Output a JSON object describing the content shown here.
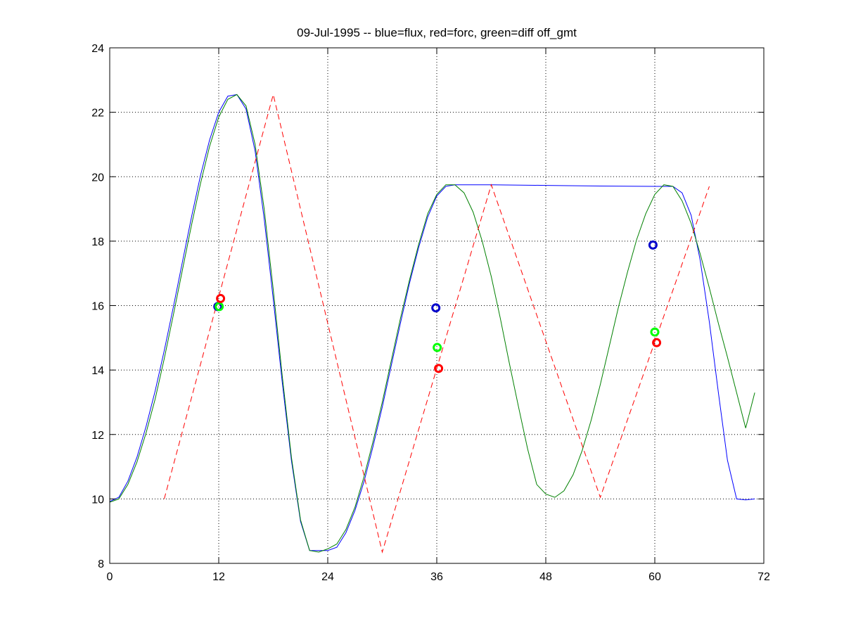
{
  "chart_data": {
    "type": "line",
    "title": "09-Jul-1995 -- blue=flux, red=forc, green=diff off_gmt",
    "xlabel": "",
    "ylabel": "",
    "xlim": [
      0,
      72
    ],
    "ylim": [
      8,
      24
    ],
    "xticks": [
      0,
      12,
      24,
      36,
      48,
      60,
      72
    ],
    "yticks": [
      8,
      10,
      12,
      14,
      16,
      18,
      20,
      22,
      24
    ],
    "xtick_labels": [
      "0",
      "12",
      "24",
      "36",
      "48",
      "60",
      "72"
    ],
    "ytick_labels": [
      "8",
      "10",
      "12",
      "14",
      "16",
      "18",
      "20",
      "22",
      "24"
    ],
    "grid": true,
    "legend": "none",
    "series": [
      {
        "color": "#0000ff",
        "style": "solid",
        "x": [
          0,
          1,
          2,
          3,
          4,
          5,
          6,
          7,
          8,
          9,
          10,
          11,
          12,
          13,
          14,
          15,
          16,
          17,
          18,
          19,
          20,
          21,
          22,
          23,
          24,
          25,
          26,
          27,
          28,
          29,
          30,
          31,
          32,
          33,
          34,
          35,
          36,
          37,
          38,
          39,
          40,
          42,
          48,
          54,
          60,
          62,
          63,
          64,
          65,
          66,
          67,
          68,
          69,
          70,
          71
        ],
        "y": [
          9.92,
          10.05,
          10.55,
          11.3,
          12.25,
          13.35,
          14.6,
          15.95,
          17.35,
          18.75,
          20.05,
          21.15,
          22.0,
          22.5,
          22.55,
          22.1,
          20.8,
          18.7,
          16.2,
          13.6,
          11.2,
          9.3,
          8.4,
          8.4,
          8.4,
          8.5,
          8.95,
          9.65,
          10.55,
          11.65,
          12.85,
          14.15,
          15.45,
          16.7,
          17.8,
          18.75,
          19.4,
          19.7,
          19.75,
          19.75,
          19.75,
          19.75,
          19.73,
          19.71,
          19.7,
          19.7,
          19.5,
          18.8,
          17.4,
          15.5,
          13.3,
          11.2,
          10.0,
          9.97,
          10.0
        ]
      },
      {
        "color": "#008000",
        "style": "solid",
        "x": [
          0,
          1,
          2,
          3,
          4,
          5,
          6,
          7,
          8,
          9,
          10,
          11,
          12,
          13,
          14,
          15,
          16,
          17,
          18,
          19,
          20,
          21,
          22,
          23,
          24,
          25,
          26,
          27,
          28,
          29,
          30,
          31,
          32,
          33,
          34,
          35,
          36,
          37,
          38,
          39,
          40,
          41,
          42,
          43,
          44,
          45,
          46,
          47,
          48,
          49,
          50,
          51,
          52,
          53,
          54,
          55,
          56,
          57,
          58,
          59,
          60,
          61,
          62,
          63,
          64,
          65,
          66,
          67,
          68,
          69,
          70,
          71
        ],
        "y": [
          9.9,
          10.0,
          10.45,
          11.15,
          12.05,
          13.1,
          14.35,
          15.7,
          17.1,
          18.5,
          19.8,
          20.95,
          21.85,
          22.4,
          22.55,
          22.2,
          21.0,
          19.0,
          16.5,
          13.8,
          11.3,
          9.35,
          8.4,
          8.35,
          8.45,
          8.6,
          9.05,
          9.75,
          10.7,
          11.8,
          13.0,
          14.3,
          15.6,
          16.8,
          17.9,
          18.85,
          19.45,
          19.75,
          19.75,
          19.5,
          18.9,
          18.0,
          16.9,
          15.6,
          14.2,
          12.85,
          11.55,
          10.45,
          10.15,
          10.05,
          10.25,
          10.75,
          11.5,
          12.45,
          13.55,
          14.75,
          15.95,
          17.05,
          18.05,
          18.85,
          19.45,
          19.75,
          19.7,
          19.25,
          18.55,
          17.6,
          16.55,
          15.45,
          14.4,
          13.3,
          12.2,
          13.3
        ]
      },
      {
        "color": "#ff0000",
        "style": "dashed",
        "x": [
          6,
          18,
          30,
          42,
          54,
          66
        ],
        "y": [
          10.0,
          22.55,
          8.35,
          19.75,
          10.05,
          19.7
        ]
      }
    ],
    "markers": [
      {
        "color": "#0000cc",
        "x": 11.9,
        "y": 15.97
      },
      {
        "color": "#00ff00",
        "x": 12.05,
        "y": 15.97
      },
      {
        "color": "#ff0000",
        "x": 12.2,
        "y": 16.22
      },
      {
        "color": "#0000cc",
        "x": 35.9,
        "y": 15.93
      },
      {
        "color": "#00ff00",
        "x": 36.05,
        "y": 14.7
      },
      {
        "color": "#ff0000",
        "x": 36.2,
        "y": 14.05
      },
      {
        "color": "#0000cc",
        "x": 59.8,
        "y": 17.88
      },
      {
        "color": "#00ff00",
        "x": 60.0,
        "y": 15.18
      },
      {
        "color": "#ff0000",
        "x": 60.2,
        "y": 14.85
      }
    ]
  }
}
